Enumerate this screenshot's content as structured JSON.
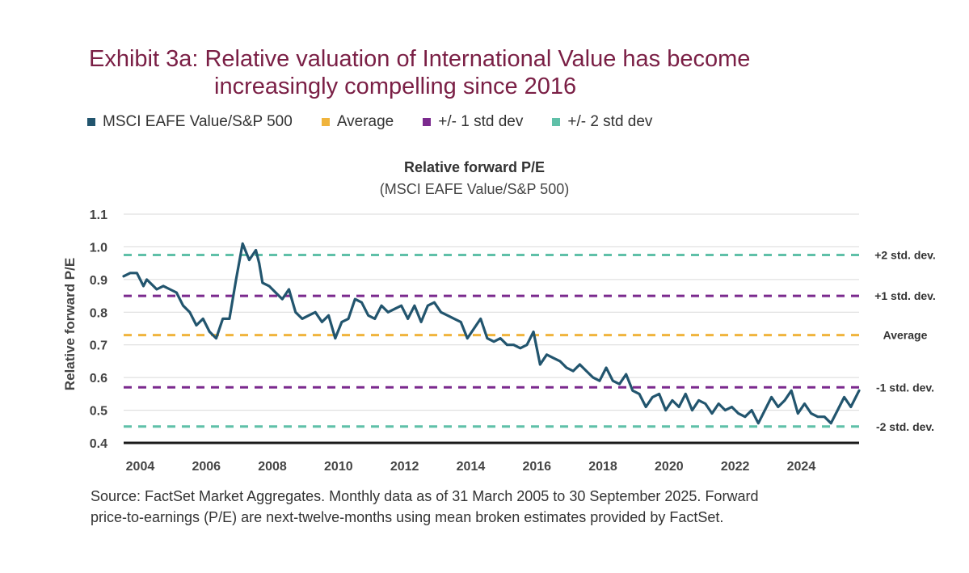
{
  "title": {
    "line1": "Exhibit 3a: Relative valuation of International Value has become",
    "line2": "increasingly compelling since 2016"
  },
  "legend": [
    {
      "label": "MSCI EAFE Value/S&P 500",
      "color": "#22556e"
    },
    {
      "label": "Average",
      "color": "#f0b43c"
    },
    {
      "label": "+/- 1 std dev",
      "color": "#7b2a8e"
    },
    {
      "label": "+/- 2 std dev",
      "color": "#5fc0a8"
    }
  ],
  "source": {
    "line1": "Source: FactSet Market Aggregates. Monthly data as of 31 March 2005 to 30 September 2025. Forward",
    "line2": "price-to-earnings (P/E) are next-twelve-months using mean broken estimates provided by FactSet."
  },
  "chart_data": {
    "type": "line",
    "title": "Relative forward P/E",
    "subtitle": "(MSCI EAFE Value/S&P 500)",
    "ylabel": "Relative forward P/E",
    "xlabel": "",
    "ylim": [
      0.4,
      1.1
    ],
    "xlim": [
      2003.5,
      2025.75
    ],
    "yticks": [
      "0.4",
      "0.5",
      "0.6",
      "0.7",
      "0.8",
      "0.9",
      "1.0",
      "1.1"
    ],
    "xticks": [
      "2004",
      "2006",
      "2008",
      "2010",
      "2012",
      "2014",
      "2016",
      "2018",
      "2020",
      "2022",
      "2024"
    ],
    "reference_lines": [
      {
        "label": "+2 std. dev.",
        "value": 0.975,
        "color": "#5fc0a8"
      },
      {
        "label": "+1 std. dev.",
        "value": 0.85,
        "color": "#7b2a8e"
      },
      {
        "label": "Average",
        "value": 0.73,
        "color": "#f0b43c"
      },
      {
        "label": "-1 std. dev.",
        "value": 0.57,
        "color": "#7b2a8e"
      },
      {
        "label": "-2 std. dev.",
        "value": 0.45,
        "color": "#5fc0a8"
      }
    ],
    "series": [
      {
        "name": "MSCI EAFE Value/S&P 500",
        "color": "#22556e",
        "x": [
          2003.5,
          2003.7,
          2003.9,
          2004.1,
          2004.2,
          2004.3,
          2004.4,
          2004.5,
          2004.7,
          2004.9,
          2005.1,
          2005.3,
          2005.5,
          2005.7,
          2005.9,
          2006.1,
          2006.3,
          2006.5,
          2006.7,
          2006.9,
          2007.1,
          2007.3,
          2007.5,
          2007.6,
          2007.7,
          2007.9,
          2008.1,
          2008.3,
          2008.5,
          2008.7,
          2008.9,
          2009.1,
          2009.3,
          2009.5,
          2009.7,
          2009.9,
          2010.1,
          2010.3,
          2010.5,
          2010.7,
          2010.9,
          2011.1,
          2011.3,
          2011.5,
          2011.7,
          2011.9,
          2012.1,
          2012.3,
          2012.5,
          2012.7,
          2012.9,
          2013.1,
          2013.3,
          2013.5,
          2013.7,
          2013.9,
          2014.1,
          2014.3,
          2014.5,
          2014.7,
          2014.9,
          2015.1,
          2015.3,
          2015.5,
          2015.7,
          2015.9,
          2016.1,
          2016.3,
          2016.5,
          2016.7,
          2016.9,
          2017.1,
          2017.3,
          2017.5,
          2017.7,
          2017.9,
          2018.1,
          2018.3,
          2018.5,
          2018.7,
          2018.9,
          2019.1,
          2019.3,
          2019.5,
          2019.7,
          2019.9,
          2020.1,
          2020.3,
          2020.5,
          2020.7,
          2020.9,
          2021.1,
          2021.3,
          2021.5,
          2021.7,
          2021.9,
          2022.1,
          2022.3,
          2022.5,
          2022.7,
          2022.9,
          2023.1,
          2023.3,
          2023.5,
          2023.7,
          2023.9,
          2024.1,
          2024.3,
          2024.5,
          2024.7,
          2024.9,
          2025.1,
          2025.3,
          2025.5,
          2025.75
        ],
        "y": [
          0.91,
          0.92,
          0.92,
          0.88,
          0.9,
          0.89,
          0.88,
          0.87,
          0.88,
          0.87,
          0.86,
          0.82,
          0.8,
          0.76,
          0.78,
          0.74,
          0.72,
          0.78,
          0.78,
          0.9,
          1.01,
          0.96,
          0.99,
          0.95,
          0.89,
          0.88,
          0.86,
          0.84,
          0.87,
          0.8,
          0.78,
          0.79,
          0.8,
          0.77,
          0.79,
          0.72,
          0.77,
          0.78,
          0.84,
          0.83,
          0.79,
          0.78,
          0.82,
          0.8,
          0.81,
          0.82,
          0.78,
          0.82,
          0.77,
          0.82,
          0.83,
          0.8,
          0.79,
          0.78,
          0.77,
          0.72,
          0.75,
          0.78,
          0.72,
          0.71,
          0.72,
          0.7,
          0.7,
          0.69,
          0.7,
          0.74,
          0.64,
          0.67,
          0.66,
          0.65,
          0.63,
          0.62,
          0.64,
          0.62,
          0.6,
          0.59,
          0.63,
          0.59,
          0.58,
          0.61,
          0.56,
          0.55,
          0.51,
          0.54,
          0.55,
          0.5,
          0.53,
          0.51,
          0.55,
          0.5,
          0.53,
          0.52,
          0.49,
          0.52,
          0.5,
          0.51,
          0.49,
          0.48,
          0.5,
          0.46,
          0.5,
          0.54,
          0.51,
          0.53,
          0.56,
          0.49,
          0.52,
          0.49,
          0.48,
          0.48,
          0.46,
          0.5,
          0.54,
          0.51,
          0.56
        ]
      }
    ]
  }
}
